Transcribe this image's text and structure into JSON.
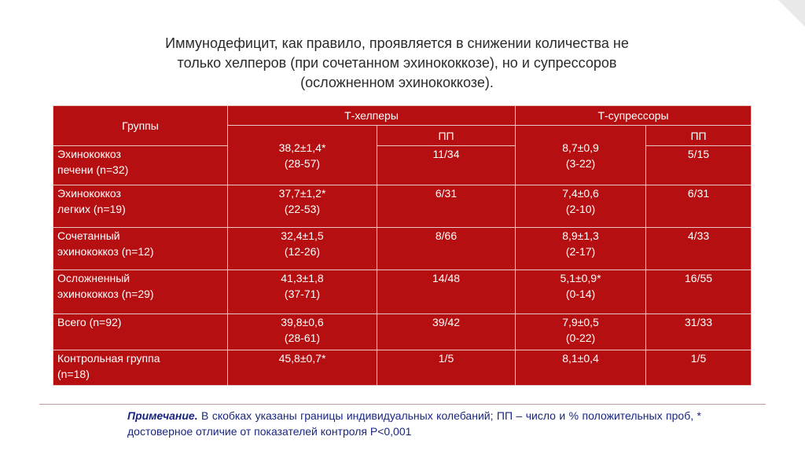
{
  "title": {
    "line1": "Иммунодефицит, как правило, проявляется в снижении количества не",
    "line2": "только хелперов (при сочетанном эхинококкозе), но и супрессоров",
    "line3": "(осложненном эхинококкозе)."
  },
  "table": {
    "header": {
      "groups": "Группы",
      "helpers": "Т-хелперы",
      "suppressors": "Т-супрессоры",
      "pp": "ПП"
    },
    "rows": [
      {
        "group1": "Эхинококкоз",
        "group2": "печени (n=32)",
        "h_value": "38,2±1,4*",
        "h_range": "(28-57)",
        "h_pp": "11/34",
        "s_value": "8,7±0,9",
        "s_range": "(3-22)",
        "s_pp": "5/15"
      },
      {
        "group1": "Эхинококкоз",
        "group2": "легких (n=19)",
        "h_value": "37,7±1,2*",
        "h_range": "(22-53)",
        "h_pp": "6/31",
        "s_value": "7,4±0,6",
        "s_range": "(2-10)",
        "s_pp": "6/31"
      },
      {
        "group1": "Сочетанный",
        "group2": "эхинококкоз (n=12)",
        "h_value": "32,4±1,5",
        "h_range": "(12-26)",
        "h_pp": "8/66",
        "s_value": "8,9±1,3",
        "s_range": "(2-17)",
        "s_pp": "4/33"
      },
      {
        "group1": "Осложненный",
        "group2": "эхинококкоз (n=29)",
        "h_value": "41,3±1,8",
        "h_range": "(37-71)",
        "h_pp": "14/48",
        "s_value": "5,1±0,9*",
        "s_range": "(0-14)",
        "s_pp": "16/55"
      },
      {
        "group1": "Всего (n=92)",
        "group2": "",
        "h_value": "39,8±0,6",
        "h_range": "(28-61)",
        "h_pp": "39/42",
        "s_value": "7,9±0,5",
        "s_range": "(0-22)",
        "s_pp": "31/33"
      },
      {
        "group1": "Контрольная группа",
        "group2": "(n=18)",
        "h_value": "45,8±0,7*",
        "h_range": "",
        "h_pp": "1/5",
        "s_value": "8,1±0,4",
        "s_range": "",
        "s_pp": "1/5"
      }
    ]
  },
  "note": {
    "lead": "Примечание.",
    "text": " В скобках указаны границы индивидуальных колебаний; ПП – число и % положительных проб, * достоверное отличие от показателей контроля  Р<0,001"
  },
  "colors": {
    "table_bg": "#b50f12",
    "note_text": "#1a2580"
  }
}
